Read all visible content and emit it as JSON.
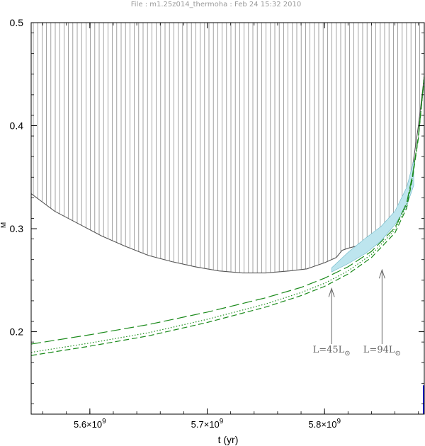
{
  "header": "File : m1.25z014_thermoha :  Feb 24 15:32 2010",
  "chart_data": {
    "type": "line",
    "xlabel": "t (yr)",
    "ylabel": "M",
    "xlim": [
      5550000000.0,
      5885000000.0
    ],
    "ylim": [
      0.12,
      0.5
    ],
    "yticks": [
      0.2,
      0.3,
      0.4,
      0.5
    ],
    "ytick_labels": [
      "0.2",
      "0.3",
      "0.4",
      "0.5"
    ],
    "xticks": [
      5600000000.0,
      5700000000.0,
      5800000000.0
    ],
    "xtick_labels": [
      {
        "mantissa": "5.6",
        "times": "×10",
        "exp": "9"
      },
      {
        "mantissa": "5.7",
        "times": "×10",
        "exp": "9"
      },
      {
        "mantissa": "5.8",
        "times": "×10",
        "exp": "9"
      }
    ],
    "convective_envelope_boundary": {
      "x": [
        5550000000.0,
        5570000000.0,
        5590000000.0,
        5610000000.0,
        5630000000.0,
        5650000000.0,
        5670000000.0,
        5690000000.0,
        5710000000.0,
        5730000000.0,
        5750000000.0,
        5770000000.0,
        5785000000.0,
        5790000000.0,
        5800000000.0,
        5810000000.0,
        5815000000.0,
        5820000000.0,
        5830000000.0,
        5845000000.0,
        5860000000.0,
        5870000000.0,
        5875000000.0,
        5880000000.0,
        5885000000.0
      ],
      "y": [
        0.334,
        0.317,
        0.305,
        0.293,
        0.283,
        0.274,
        0.268,
        0.263,
        0.259,
        0.257,
        0.257,
        0.259,
        0.261,
        0.263,
        0.267,
        0.272,
        0.279,
        0.281,
        0.284,
        0.291,
        0.31,
        0.335,
        0.36,
        0.4,
        0.448
      ]
    },
    "series": [
      {
        "style": "long-dash",
        "color": "#1a8a1a",
        "x": [
          5550000000.0,
          5600000000.0,
          5650000000.0,
          5700000000.0,
          5750000000.0,
          5780000000.0,
          5800000000.0,
          5820000000.0,
          5840000000.0,
          5860000000.0,
          5870000000.0,
          5875000000.0,
          5880000000.0,
          5885000000.0
        ],
        "y": [
          0.188,
          0.197,
          0.207,
          0.219,
          0.233,
          0.243,
          0.252,
          0.263,
          0.278,
          0.301,
          0.325,
          0.352,
          0.39,
          0.448
        ]
      },
      {
        "style": "dotted",
        "color": "#1a8a1a",
        "x": [
          5550000000.0,
          5600000000.0,
          5650000000.0,
          5700000000.0,
          5750000000.0,
          5780000000.0,
          5800000000.0,
          5820000000.0,
          5840000000.0,
          5860000000.0,
          5870000000.0,
          5875000000.0,
          5880000000.0,
          5885000000.0
        ],
        "y": [
          0.18,
          0.189,
          0.199,
          0.212,
          0.227,
          0.238,
          0.247,
          0.259,
          0.275,
          0.299,
          0.323,
          0.351,
          0.389,
          0.448
        ]
      },
      {
        "style": "dash",
        "color": "#1a8a1a",
        "x": [
          5550000000.0,
          5600000000.0,
          5650000000.0,
          5700000000.0,
          5750000000.0,
          5780000000.0,
          5800000000.0,
          5820000000.0,
          5840000000.0,
          5860000000.0,
          5870000000.0,
          5875000000.0,
          5880000000.0,
          5885000000.0
        ],
        "y": [
          0.177,
          0.186,
          0.196,
          0.209,
          0.224,
          0.235,
          0.244,
          0.256,
          0.272,
          0.296,
          0.32,
          0.349,
          0.388,
          0.448
        ]
      }
    ],
    "burning_region": {
      "x": [
        5806000000.0,
        5820000000.0,
        5835000000.0,
        5848000000.0,
        5860000000.0,
        5870000000.0,
        5876000000.0,
        5876000000.0,
        5870000000.0,
        5860000000.0,
        5848000000.0,
        5835000000.0,
        5820000000.0,
        5806000000.0
      ],
      "y": [
        0.258,
        0.266,
        0.276,
        0.288,
        0.304,
        0.322,
        0.342,
        0.366,
        0.34,
        0.317,
        0.302,
        0.291,
        0.277,
        0.262
      ],
      "color": "#bde5ee"
    },
    "annotations": [
      {
        "text": "L=45L",
        "sub": "⊙",
        "arrow_x": 5806000000.0,
        "arrow_y_top": 0.242,
        "arrow_y_bottom": 0.188
      },
      {
        "text": "L=94L",
        "sub": "⊙",
        "arrow_x": 5849000000.0,
        "arrow_y_top": 0.26,
        "arrow_y_bottom": 0.188
      }
    ],
    "grid": false
  }
}
